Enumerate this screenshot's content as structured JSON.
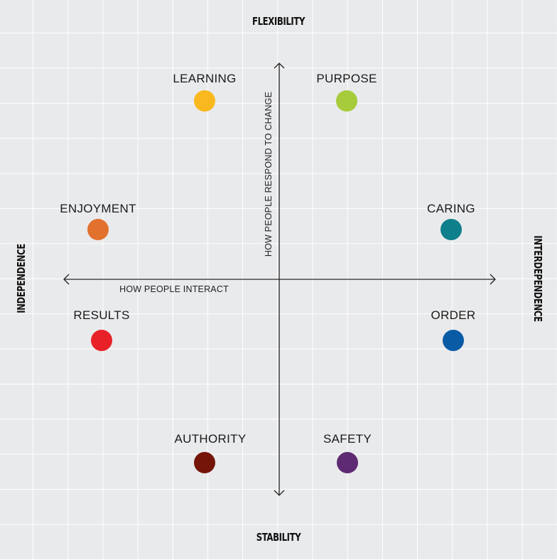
{
  "poles": {
    "top": "FLEXIBILITY",
    "bottom": "STABILITY",
    "left": "INDEPENDENCE",
    "right": "INTERDEPENDENCE"
  },
  "axes": {
    "horizontal_label": "HOW PEOPLE INTERACT",
    "vertical_label": "HOW PEOPLE RESPOND TO CHANGE"
  },
  "cultures": [
    {
      "name": "LEARNING",
      "color": "#f9b91e"
    },
    {
      "name": "PURPOSE",
      "color": "#a6cb3b"
    },
    {
      "name": "ENJOYMENT",
      "color": "#e2712d"
    },
    {
      "name": "CARING",
      "color": "#0f7f8c"
    },
    {
      "name": "RESULTS",
      "color": "#e82128"
    },
    {
      "name": "ORDER",
      "color": "#0a5ba6"
    },
    {
      "name": "AUTHORITY",
      "color": "#741508"
    },
    {
      "name": "SAFETY",
      "color": "#5e2a72"
    }
  ]
}
